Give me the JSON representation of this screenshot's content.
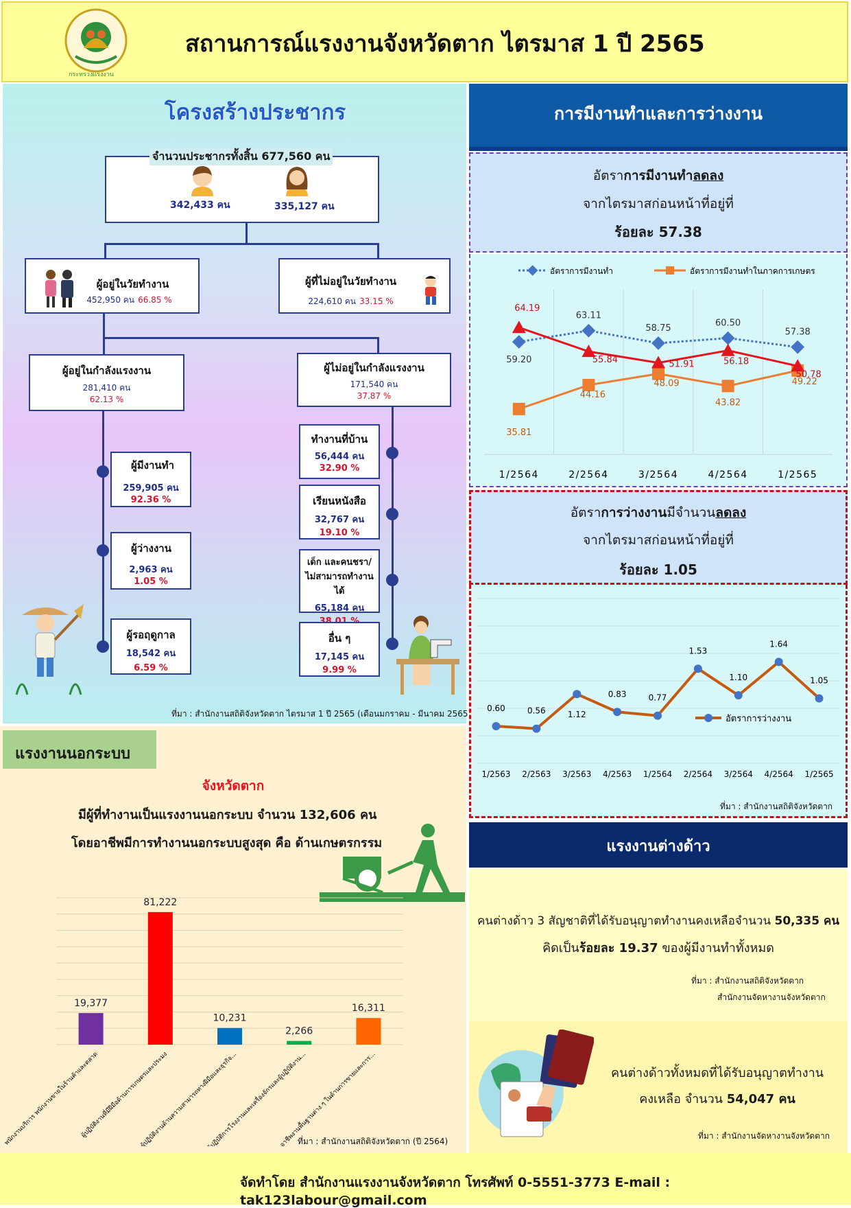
{
  "header": {
    "title": "สถานการณ์แรงงานจังหวัดตาก ไตรมาส 1 ปี 2565",
    "logo_text": "กระทรวงแรงงาน"
  },
  "population": {
    "heading": "โครงสร้างประชากร",
    "total_label": "จำนวนประชากรทั้งสิ้น 677,560 คน",
    "male": "342,433 คน",
    "female": "335,127 คน",
    "working_age": {
      "title": "ผู้อยู่ในวัยทำงาน",
      "count": "452,950 คน",
      "pct": "66.85 %"
    },
    "non_working_age": {
      "title": "ผู้ที่ไม่อยู่ในวัยทำงาน",
      "count": "224,610 คน",
      "pct": "33.15 %"
    },
    "labor_force": {
      "title": "ผู้อยู่ในกำลังแรงงาน",
      "count": "281,410 คน",
      "pct": "62.13 %"
    },
    "not_labor_force": {
      "title": "ผู้ไม่อยู่ในกำลังแรงงาน",
      "count": "171,540 คน",
      "pct": "37.87 %"
    },
    "employed": {
      "title": "ผู้มีงานทำ",
      "count": "259,905 คน",
      "pct": "92.36 %"
    },
    "unemployed": {
      "title": "ผู้ว่างงาน",
      "count": "2,963 คน",
      "pct": "1.05 %"
    },
    "seasonal": {
      "title": "ผู้รอฤดูกาล",
      "count": "18,542 คน",
      "pct": "6.59 %"
    },
    "housework": {
      "title": "ทำงานที่บ้าน",
      "count": "56,444 คน",
      "pct": "32.90 %"
    },
    "study": {
      "title": "เรียนหนังสือ",
      "count": "32,767 คน",
      "pct": "19.10 %"
    },
    "children_elderly": {
      "title1": "เด็ก และคนชรา/",
      "title2": "ไม่สามารถทำงานได้",
      "count": "65,184 คน",
      "pct": "38.01 %"
    },
    "other": {
      "title": "อื่น ๆ",
      "count": "17,145 คน",
      "pct": "9.99 %"
    },
    "source": "ที่มา : สำนักงานสถิติจังหวัดตาก ไตรมาส 1 ปี 2565 (เดือนมกราคม - มีนาคม 2565)"
  },
  "employment": {
    "heading": "การมีงานทำและการว่างงาน",
    "line1_pre": "อัตรา",
    "line1_bold": "การมีงานทำ",
    "line1_under": "ลดลง",
    "line2": "จากไตรมาสก่อนหน้าที่อยู่ที่",
    "line3": "ร้อยละ 57.38"
  },
  "unemployment": {
    "line1_pre": "อัตรา",
    "line1_bold": "การว่างงาน",
    "line1_mid": "มีจำนวน",
    "line1_under": "ลดลง",
    "line2": "จากไตรมาสก่อนหน้าที่อยู่ที่",
    "line3": "ร้อยละ 1.05",
    "source": "ที่มา : สำนักงานสถิติจังหวัดตาก"
  },
  "informal": {
    "heading": "แรงงานนอกระบบ",
    "province": "จังหวัดตาก",
    "line1": "มีผู้ที่ทำงานเป็นแรงงานนอกระบบ จำนวน 132,606 คน",
    "line2": "โดยอาชีพมีการทำงานนอกระบบสูงสุด คือ ด้านเกษตรกรรม",
    "source": "ที่มา : สำนักงานสถิติจังหวัดตาก (ปี 2564)"
  },
  "foreign": {
    "heading": "แรงงานต่างด้าว",
    "line1_pre": "คนต่างด้าว 3 สัญชาติที่ได้รับอนุญาตทำงานคงเหลือจำนวน ",
    "line1_bold": "50,335 คน",
    "line2_pre": "คิดเป็น",
    "line2_bold": "ร้อยละ 19.37",
    "line2_post": " ของผู้มีงานทำทั้งหมด",
    "source1": "ที่มา : สำนักงานสถิติจังหวัดตาก",
    "source2": "สำนักงานจัดหางานจังหวัดตาก",
    "total1": "คนต่างด้าวทั้งหมดที่ได้รับอนุญาตทำงาน",
    "total2_pre": "คงเหลือ จำนวน ",
    "total2_bold": "54,047 คน",
    "source3": "ที่มา : สำนักงานจัดหางานจังหวัดตาก"
  },
  "footer": {
    "text": "จัดทำโดย สำนักงานแรงงานจังหวัดตาก โทรศัพท์ 0-5551-3773 E-mail : tak123labour@gmail.com"
  },
  "chart_data": [
    {
      "type": "line",
      "categories": [
        "1/2564",
        "2/2564",
        "3/2564",
        "4/2564",
        "1/2565"
      ],
      "series": [
        {
          "name": "อัตราการมีงานทำ",
          "values": [
            59.2,
            63.11,
            58.75,
            60.5,
            57.38
          ],
          "color": "#4472c4"
        },
        {
          "name": "อัตราการมีงานทำในภาคการเกษตร",
          "values": [
            35.81,
            44.16,
            48.09,
            43.82,
            49.22
          ],
          "color": "#ed7d31"
        },
        {
          "values": [
            64.19,
            55.84,
            51.91,
            56.18,
            50.78
          ],
          "color": "#e3151e"
        }
      ],
      "ylim": [
        20,
        75
      ]
    },
    {
      "type": "line",
      "categories": [
        "1/2563",
        "2/2563",
        "3/2563",
        "4/2563",
        "1/2564",
        "2/2564",
        "3/2564",
        "4/2564",
        "1/2565"
      ],
      "series": [
        {
          "name": "อัตราการว่างงาน",
          "values": [
            0.6,
            0.56,
            1.12,
            0.83,
            0.77,
            1.53,
            1.1,
            1.64,
            1.05
          ],
          "color": "#c55a11"
        }
      ],
      "ylim": [
        0,
        2
      ]
    },
    {
      "type": "bar",
      "categories": [
        "พนักงานบริการ พนักงานขายในร้านค้าและตลาด",
        "ผู้ปฏิบัติงานที่มีฝีมือด้านการเกษตรและประมง",
        "ผู้ปฏิบัติงานด้านความสามารถทางฝีมือและธุรกิจ...",
        "ผู้ปฏิบัติการโรงงานและเครื่องจักรและผู้ปฏิบัติงาน...",
        "อาชีพงานพื้นฐานต่าง ๆ ในด้านการขายและการ..."
      ],
      "values": [
        19377,
        81222,
        10231,
        2266,
        16311
      ],
      "labels": [
        "19,377",
        "81,222",
        "10,231",
        "2,266",
        "16,311"
      ],
      "colors": [
        "#7030a0",
        "#ff0000",
        "#0070c0",
        "#00b050",
        "#ff6600"
      ],
      "ylim": [
        0,
        90000
      ]
    }
  ]
}
